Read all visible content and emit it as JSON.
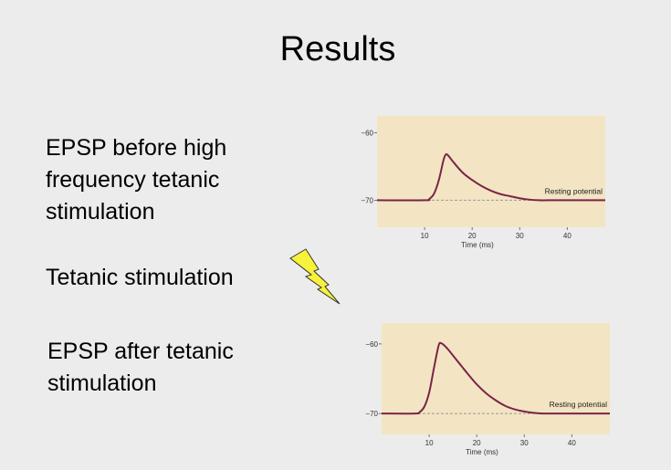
{
  "slide": {
    "title": "Results",
    "text_before": "EPSP before high frequency tetanic stimulation",
    "text_tetanic": "Tetanic stimulation",
    "text_after": "EPSP after tetanic stimulation"
  },
  "icons": {
    "stimulus": "lightning-bolt-icon"
  },
  "colors": {
    "plot_background": "#f3e5c3",
    "trace": "#7a2448",
    "baseline": "#999999",
    "bolt_fill": "#f7f23a"
  },
  "chart_data": [
    {
      "type": "line",
      "xlabel": "Time (ms)",
      "xlim": [
        0,
        48
      ],
      "ylim": [
        -74,
        -57.5
      ],
      "xticks": [
        10,
        20,
        30,
        40
      ],
      "yticks": [
        -60,
        -70
      ],
      "xtick_labels": [
        "10",
        "20",
        "30",
        "40"
      ],
      "ytick_labels": [
        "−60",
        "−70"
      ],
      "annotation": "Resting potential",
      "baseline": -70,
      "series": [
        {
          "x": [
            0,
            10,
            11,
            12,
            13,
            14,
            14.5,
            15,
            16,
            18,
            20,
            22,
            24,
            26,
            28,
            30,
            32,
            34,
            36,
            40,
            48
          ],
          "y": [
            -70,
            -70,
            -69.8,
            -69,
            -67,
            -64,
            -63.2,
            -63.4,
            -64.3,
            -65.9,
            -67,
            -67.9,
            -68.6,
            -69.1,
            -69.4,
            -69.7,
            -69.9,
            -70,
            -70,
            -70,
            -70
          ]
        }
      ]
    },
    {
      "type": "line",
      "xlabel": "Time (ms)",
      "xlim": [
        0,
        48
      ],
      "ylim": [
        -73,
        -57
      ],
      "xticks": [
        10,
        20,
        30,
        40
      ],
      "yticks": [
        -60,
        -70
      ],
      "xtick_labels": [
        "10",
        "20",
        "30",
        "40"
      ],
      "ytick_labels": [
        "−60",
        "−70"
      ],
      "annotation": "Resting potential",
      "baseline": -70,
      "series": [
        {
          "x": [
            0,
            7,
            8,
            9,
            10,
            11,
            12,
            12.5,
            13,
            14,
            16,
            18,
            20,
            22,
            24,
            26,
            28,
            30,
            32,
            34,
            36,
            40,
            48
          ],
          "y": [
            -70,
            -70,
            -69.8,
            -69,
            -67,
            -63.5,
            -60.2,
            -59.9,
            -60.1,
            -60.8,
            -62.5,
            -64.2,
            -65.8,
            -67.1,
            -68.1,
            -68.9,
            -69.4,
            -69.7,
            -69.9,
            -70,
            -70,
            -70,
            -70
          ]
        }
      ]
    }
  ]
}
